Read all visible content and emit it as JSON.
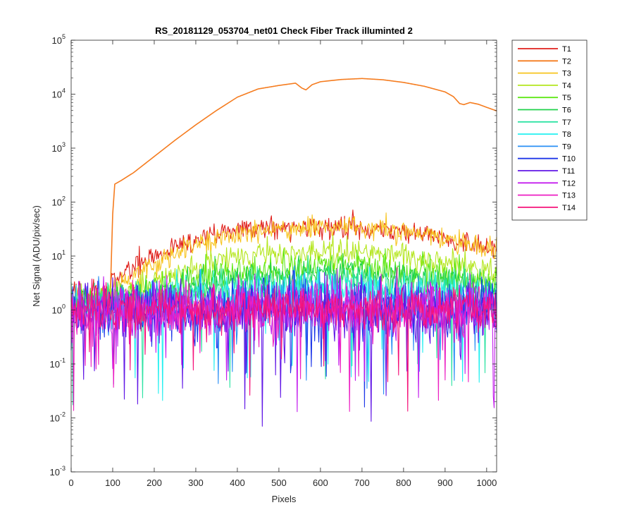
{
  "chart_data": {
    "type": "line",
    "title": "RS_20181129_053704_net01   Check Fiber     Track illuminted 2",
    "xlabel": "Pixels",
    "ylabel": "Net Signal (ADU/pix/sec)",
    "xlim": [
      0,
      1024
    ],
    "ylim": [
      0.001,
      100000
    ],
    "yscale": "log",
    "xticks": [
      0,
      100,
      200,
      300,
      400,
      500,
      600,
      700,
      800,
      900,
      1000
    ],
    "yticks": [
      {
        "value": 0.001,
        "base": "10",
        "exp": "-3"
      },
      {
        "value": 0.01,
        "base": "10",
        "exp": "-2"
      },
      {
        "value": 0.1,
        "base": "10",
        "exp": "-1"
      },
      {
        "value": 1,
        "base": "10",
        "exp": "0"
      },
      {
        "value": 10,
        "base": "10",
        "exp": "1"
      },
      {
        "value": 100,
        "base": "10",
        "exp": "2"
      },
      {
        "value": 1000,
        "base": "10",
        "exp": "3"
      },
      {
        "value": 10000,
        "base": "10",
        "exp": "4"
      },
      {
        "value": 100000,
        "base": "10",
        "exp": "5"
      }
    ],
    "grid": false,
    "legend_position": "outside-top-right",
    "series": [
      {
        "name": "T1",
        "color": "#e0201b",
        "points": [
          [
            0,
            2.3
          ],
          [
            50,
            2.2
          ],
          [
            90,
            2.2
          ],
          [
            100,
            3.4
          ],
          [
            150,
            6
          ],
          [
            200,
            10.5
          ],
          [
            250,
            15
          ],
          [
            300,
            20
          ],
          [
            350,
            25
          ],
          [
            400,
            30
          ],
          [
            450,
            33
          ],
          [
            500,
            34.5
          ],
          [
            550,
            35
          ],
          [
            600,
            35
          ],
          [
            650,
            35
          ],
          [
            700,
            34
          ],
          [
            750,
            32
          ],
          [
            800,
            29
          ],
          [
            850,
            25
          ],
          [
            900,
            21
          ],
          [
            950,
            18
          ],
          [
            1000,
            15
          ],
          [
            1024,
            14
          ]
        ],
        "noise": 0.1
      },
      {
        "name": "T2",
        "color": "#f57c1f",
        "points": [
          [
            0,
            1.4
          ],
          [
            90,
            1.6
          ],
          [
            95,
            3
          ],
          [
            100,
            60
          ],
          [
            105,
            215
          ],
          [
            120,
            250
          ],
          [
            150,
            350
          ],
          [
            200,
            700
          ],
          [
            250,
            1400
          ],
          [
            300,
            2700
          ],
          [
            350,
            5000
          ],
          [
            400,
            8800
          ],
          [
            450,
            12500
          ],
          [
            500,
            14500
          ],
          [
            540,
            16000
          ],
          [
            555,
            13000
          ],
          [
            565,
            12000
          ],
          [
            580,
            15000
          ],
          [
            600,
            17000
          ],
          [
            650,
            18700
          ],
          [
            700,
            19500
          ],
          [
            750,
            18500
          ],
          [
            800,
            16500
          ],
          [
            850,
            14000
          ],
          [
            900,
            11000
          ],
          [
            920,
            9000
          ],
          [
            935,
            6700
          ],
          [
            945,
            6400
          ],
          [
            960,
            7000
          ],
          [
            980,
            6500
          ],
          [
            1000,
            5700
          ],
          [
            1024,
            4900
          ]
        ],
        "noise": 0
      },
      {
        "name": "T3",
        "color": "#f7c41e",
        "points": [
          [
            0,
            1.8
          ],
          [
            50,
            1.9
          ],
          [
            90,
            2.0
          ],
          [
            100,
            2.4
          ],
          [
            150,
            4.2
          ],
          [
            200,
            7
          ],
          [
            250,
            11
          ],
          [
            300,
            16
          ],
          [
            350,
            20.5
          ],
          [
            400,
            24.5
          ],
          [
            450,
            28
          ],
          [
            500,
            30.5
          ],
          [
            550,
            32.5
          ],
          [
            600,
            33.5
          ],
          [
            650,
            34
          ],
          [
            700,
            33
          ],
          [
            750,
            31
          ],
          [
            800,
            28
          ],
          [
            850,
            24.5
          ],
          [
            900,
            21
          ],
          [
            950,
            18
          ],
          [
            1000,
            14.5
          ],
          [
            1024,
            12.5
          ]
        ],
        "noise": 0.1
      },
      {
        "name": "T4",
        "color": "#b4e61e",
        "points": [
          [
            0,
            1.6
          ],
          [
            100,
            1.7
          ],
          [
            150,
            2.2
          ],
          [
            200,
            3.3
          ],
          [
            250,
            4.8
          ],
          [
            300,
            6.3
          ],
          [
            350,
            7.8
          ],
          [
            400,
            9
          ],
          [
            450,
            10
          ],
          [
            500,
            10.7
          ],
          [
            550,
            11.3
          ],
          [
            600,
            11.8
          ],
          [
            650,
            12
          ],
          [
            700,
            11.6
          ],
          [
            750,
            10.8
          ],
          [
            800,
            10
          ],
          [
            850,
            8.8
          ],
          [
            900,
            7.5
          ],
          [
            950,
            6.5
          ],
          [
            1000,
            5.5
          ],
          [
            1024,
            5
          ]
        ],
        "noise": 0.12
      },
      {
        "name": "T5",
        "color": "#5fe817",
        "points": [
          [
            0,
            1.4
          ],
          [
            100,
            1.5
          ],
          [
            200,
            2.3
          ],
          [
            250,
            3
          ],
          [
            300,
            3.8
          ],
          [
            350,
            4.4
          ],
          [
            400,
            4.9
          ],
          [
            450,
            5.3
          ],
          [
            500,
            5.7
          ],
          [
            550,
            6
          ],
          [
            600,
            6.1
          ],
          [
            650,
            6.2
          ],
          [
            700,
            6
          ],
          [
            750,
            5.8
          ],
          [
            800,
            5.4
          ],
          [
            850,
            4.9
          ],
          [
            900,
            4.3
          ],
          [
            950,
            3.8
          ],
          [
            1000,
            3.4
          ],
          [
            1024,
            3.3
          ]
        ],
        "noise": 0.14
      },
      {
        "name": "T6",
        "color": "#1fd24a",
        "points": [
          [
            0,
            1.3
          ],
          [
            200,
            1.8
          ],
          [
            300,
            2.8
          ],
          [
            400,
            3.6
          ],
          [
            500,
            4.2
          ],
          [
            600,
            4.5
          ],
          [
            700,
            4.4
          ],
          [
            800,
            4
          ],
          [
            900,
            3.3
          ],
          [
            1000,
            2.8
          ],
          [
            1024,
            2.7
          ]
        ],
        "noise": 0.15
      },
      {
        "name": "T7",
        "color": "#2fe3a4",
        "points": [
          [
            0,
            1.2
          ],
          [
            200,
            1.5
          ],
          [
            300,
            2.1
          ],
          [
            400,
            2.6
          ],
          [
            500,
            3
          ],
          [
            600,
            3.2
          ],
          [
            700,
            3.2
          ],
          [
            800,
            2.9
          ],
          [
            900,
            2.5
          ],
          [
            1000,
            2.2
          ],
          [
            1024,
            2.1
          ]
        ],
        "noise": 0.16
      },
      {
        "name": "T8",
        "color": "#24f0f0",
        "points": [
          [
            0,
            1.1
          ],
          [
            300,
            1.6
          ],
          [
            500,
            2.1
          ],
          [
            650,
            2.3
          ],
          [
            800,
            2.1
          ],
          [
            1024,
            1.7
          ]
        ],
        "noise": 0.18
      },
      {
        "name": "T9",
        "color": "#2a8ff5",
        "points": [
          [
            0,
            1.0
          ],
          [
            300,
            1.2
          ],
          [
            600,
            1.5
          ],
          [
            800,
            1.4
          ],
          [
            1024,
            1.2
          ]
        ],
        "noise": 0.24
      },
      {
        "name": "T10",
        "color": "#1e37e8",
        "points": [
          [
            0,
            0.9
          ],
          [
            500,
            1.1
          ],
          [
            1024,
            1.0
          ]
        ],
        "noise": 0.27
      },
      {
        "name": "T11",
        "color": "#6117e6",
        "points": [
          [
            0,
            0.9
          ],
          [
            500,
            1.05
          ],
          [
            1024,
            1.0
          ]
        ],
        "noise": 0.27
      },
      {
        "name": "T12",
        "color": "#c41fee",
        "points": [
          [
            0,
            0.95
          ],
          [
            500,
            1.05
          ],
          [
            1024,
            1.0
          ]
        ],
        "noise": 0.26
      },
      {
        "name": "T13",
        "color": "#ec1fc3",
        "points": [
          [
            0,
            0.95
          ],
          [
            500,
            1.1
          ],
          [
            1024,
            1.05
          ]
        ],
        "noise": 0.23
      },
      {
        "name": "T14",
        "color": "#f5137a",
        "points": [
          [
            0,
            1.0
          ],
          [
            500,
            1.1
          ],
          [
            1024,
            1.05
          ]
        ],
        "noise": 0.2
      }
    ]
  }
}
